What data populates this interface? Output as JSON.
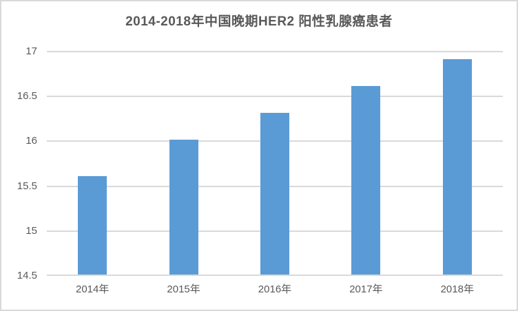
{
  "chart_data": {
    "type": "bar",
    "title": "2014-2018年中国晚期HER2 阳性乳腺癌患者",
    "categories": [
      "2014年",
      "2015年",
      "2016年",
      "2017年",
      "2018年"
    ],
    "values": [
      15.6,
      16.0,
      16.3,
      16.6,
      16.9
    ],
    "xlabel": "",
    "ylabel": "",
    "ylim": [
      14.5,
      17
    ],
    "yticks": [
      14.5,
      15,
      15.5,
      16,
      16.5,
      17
    ],
    "ytick_labels": [
      "14.5",
      "15",
      "15.5",
      "16",
      "16.5",
      "17"
    ],
    "grid": true,
    "legend_position": "none",
    "bar_color": "#5B9BD5",
    "gridline_color": "#D9D9D9",
    "axis_line_color": "#D9D9D9",
    "text_color": "#595959",
    "frame_border_color": "#D9D9D9",
    "background_color": "#FFFFFF"
  }
}
